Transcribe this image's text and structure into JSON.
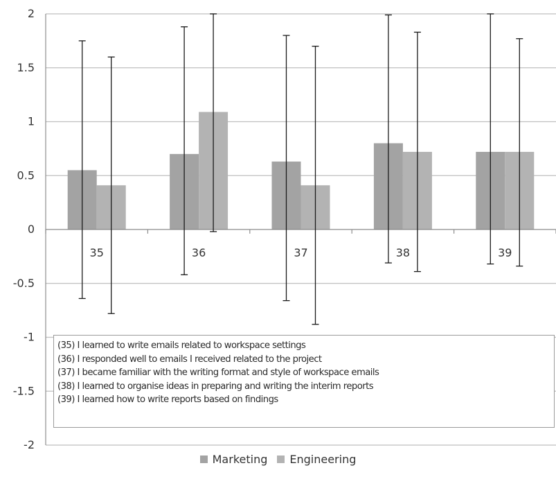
{
  "chart_data": {
    "type": "bar",
    "title": "",
    "xlabel": "",
    "ylabel": "",
    "ylim": [
      -2,
      2
    ],
    "yticks": [
      -2,
      -1.5,
      -1,
      -0.5,
      0,
      0.5,
      1,
      1.5,
      2
    ],
    "ytick_labels": [
      "-2",
      "-1.5",
      "-1",
      "-0.5",
      "0",
      "0.5",
      "1",
      "1.5",
      "2"
    ],
    "categories": [
      "35",
      "36",
      "37",
      "38",
      "39"
    ],
    "grid": true,
    "legend_position": "bottom",
    "error_bars": true,
    "series": [
      {
        "name": "Marketing",
        "color": "#a3a3a3",
        "values": [
          0.55,
          0.7,
          0.63,
          0.8,
          0.72
        ],
        "error_low": [
          -0.64,
          -0.42,
          -0.66,
          -0.31,
          -0.32
        ],
        "error_high": [
          1.75,
          1.88,
          1.8,
          1.99,
          2.0
        ]
      },
      {
        "name": "Engineering",
        "color": "#b3b3b3",
        "values": [
          0.41,
          1.09,
          0.41,
          0.72,
          0.72
        ],
        "error_low": [
          -0.78,
          -0.02,
          -0.88,
          -0.39,
          -0.34
        ],
        "error_high": [
          1.6,
          2.0,
          1.7,
          1.83,
          1.77
        ]
      }
    ],
    "annotation_lines": [
      "(35) I learned to write emails related to workspace settings",
      "(36) I responded well to emails I received related to the project",
      "(37) I became familiar with the writing format and style of workspace emails",
      "(38) I learned to organise ideas in preparing and writing the interim reports",
      "(39) I learned how to write reports based on findings"
    ]
  },
  "colors": {
    "grid": "#bfbfbf",
    "axis": "#8c8c8c",
    "error_bar": "#1a1a1a",
    "text": "#333333"
  }
}
